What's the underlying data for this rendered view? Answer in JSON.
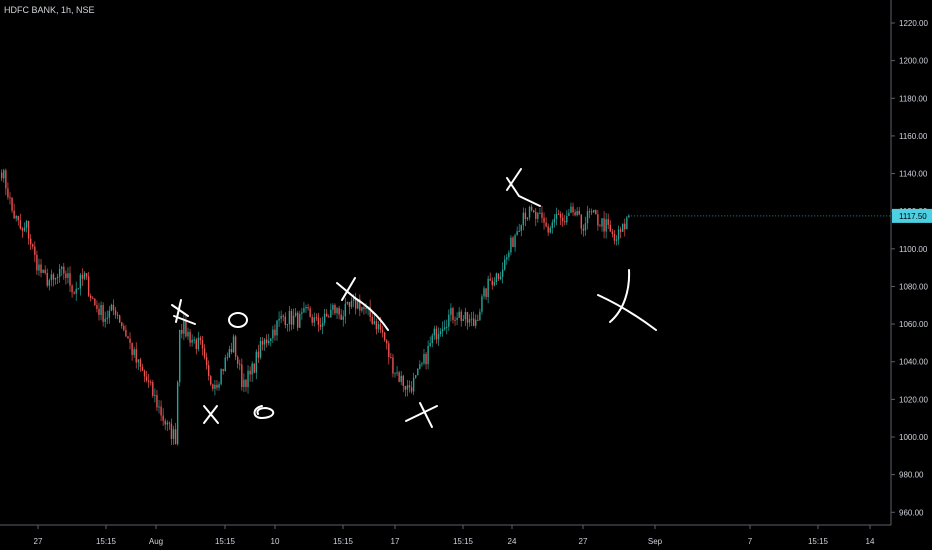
{
  "header": {
    "symbol_title": "HDFC BANK, 1h, NSE"
  },
  "colors": {
    "background": "#000000",
    "up": "#26a69a",
    "down": "#ef5350",
    "axis_line": "#5d606b",
    "price_tag": "#4dd0e1",
    "drawing": "#ffffff"
  },
  "chart_data": {
    "type": "candlestick",
    "title": "HDFC BANK, 1h, NSE",
    "ylim": [
      950,
      1230
    ],
    "y_ticks": [
      "960.00",
      "980.00",
      "1000.00",
      "1020.00",
      "1040.00",
      "1060.00",
      "1080.00",
      "1100.00",
      "1120.00",
      "1140.00",
      "1160.00",
      "1180.00",
      "1200.00",
      "1220.00"
    ],
    "x_ticks": [
      "27",
      "15:15",
      "Aug",
      "15:15",
      "10",
      "15:15",
      "17",
      "15:15",
      "24",
      "27",
      "Sep",
      "7",
      "15:15",
      "14"
    ],
    "last_price": "1117.50",
    "anchors": [
      {
        "i": 0,
        "v": 1142
      },
      {
        "i": 3,
        "v": 1130
      },
      {
        "i": 5,
        "v": 1120
      },
      {
        "i": 10,
        "v": 1108
      },
      {
        "i": 12,
        "v": 1112
      },
      {
        "i": 16,
        "v": 1095
      },
      {
        "i": 20,
        "v": 1085
      },
      {
        "i": 25,
        "v": 1082
      },
      {
        "i": 30,
        "v": 1088
      },
      {
        "i": 35,
        "v": 1078
      },
      {
        "i": 40,
        "v": 1085
      },
      {
        "i": 45,
        "v": 1070
      },
      {
        "i": 50,
        "v": 1064
      },
      {
        "i": 55,
        "v": 1068
      },
      {
        "i": 60,
        "v": 1055
      },
      {
        "i": 65,
        "v": 1040
      },
      {
        "i": 70,
        "v": 1030
      },
      {
        "i": 75,
        "v": 1018
      },
      {
        "i": 80,
        "v": 1005
      },
      {
        "i": 84,
        "v": 1000
      },
      {
        "i": 86,
        "v": 1060
      },
      {
        "i": 92,
        "v": 1052
      },
      {
        "i": 96,
        "v": 1048
      },
      {
        "i": 100,
        "v": 1030
      },
      {
        "i": 104,
        "v": 1030
      },
      {
        "i": 108,
        "v": 1040
      },
      {
        "i": 112,
        "v": 1050
      },
      {
        "i": 116,
        "v": 1030
      },
      {
        "i": 120,
        "v": 1032
      },
      {
        "i": 124,
        "v": 1045
      },
      {
        "i": 128,
        "v": 1052
      },
      {
        "i": 132,
        "v": 1058
      },
      {
        "i": 136,
        "v": 1064
      },
      {
        "i": 140,
        "v": 1063
      },
      {
        "i": 144,
        "v": 1062
      },
      {
        "i": 148,
        "v": 1066
      },
      {
        "i": 152,
        "v": 1060
      },
      {
        "i": 156,
        "v": 1062
      },
      {
        "i": 160,
        "v": 1068
      },
      {
        "i": 164,
        "v": 1065
      },
      {
        "i": 168,
        "v": 1068
      },
      {
        "i": 172,
        "v": 1072
      },
      {
        "i": 176,
        "v": 1066
      },
      {
        "i": 180,
        "v": 1062
      },
      {
        "i": 184,
        "v": 1055
      },
      {
        "i": 188,
        "v": 1040
      },
      {
        "i": 192,
        "v": 1032
      },
      {
        "i": 196,
        "v": 1026
      },
      {
        "i": 200,
        "v": 1030
      },
      {
        "i": 204,
        "v": 1040
      },
      {
        "i": 208,
        "v": 1052
      },
      {
        "i": 212,
        "v": 1060
      },
      {
        "i": 216,
        "v": 1064
      },
      {
        "i": 220,
        "v": 1066
      },
      {
        "i": 224,
        "v": 1062
      },
      {
        "i": 228,
        "v": 1060
      },
      {
        "i": 232,
        "v": 1072
      },
      {
        "i": 236,
        "v": 1083
      },
      {
        "i": 240,
        "v": 1087
      },
      {
        "i": 244,
        "v": 1095
      },
      {
        "i": 248,
        "v": 1108
      },
      {
        "i": 252,
        "v": 1120
      },
      {
        "i": 256,
        "v": 1118
      },
      {
        "i": 260,
        "v": 1115
      },
      {
        "i": 264,
        "v": 1110
      },
      {
        "i": 268,
        "v": 1118
      },
      {
        "i": 272,
        "v": 1112
      },
      {
        "i": 276,
        "v": 1120
      },
      {
        "i": 280,
        "v": 1112
      },
      {
        "i": 284,
        "v": 1118
      },
      {
        "i": 288,
        "v": 1115
      },
      {
        "i": 292,
        "v": 1112
      },
      {
        "i": 296,
        "v": 1104
      },
      {
        "i": 300,
        "v": 1110
      },
      {
        "i": 303,
        "v": 1117.5
      }
    ]
  }
}
